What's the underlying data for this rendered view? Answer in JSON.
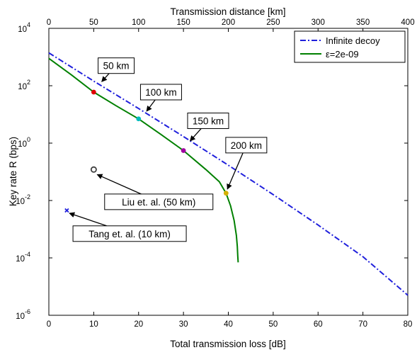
{
  "chart_data": {
    "type": "line",
    "title": "",
    "xlabel": "Total transmission loss [dB]",
    "x2label": "Transmission distance [km]",
    "ylabel": "Key rate R (bps)",
    "xlim": [
      0,
      80
    ],
    "x2lim": [
      0,
      400
    ],
    "ylim_log10": [
      -6,
      4
    ],
    "yscale": "log",
    "grid": false,
    "legend_position": "top-right",
    "x_ticks": [
      "0",
      "10",
      "20",
      "30",
      "40",
      "50",
      "60",
      "70",
      "80"
    ],
    "x2_ticks": [
      "0",
      "50",
      "100",
      "150",
      "200",
      "250",
      "300",
      "350",
      "400"
    ],
    "y_ticks": [
      {
        "base": "10",
        "exp": "-6"
      },
      {
        "base": "10",
        "exp": "-4"
      },
      {
        "base": "10",
        "exp": "-2"
      },
      {
        "base": "10",
        "exp": "0"
      },
      {
        "base": "10",
        "exp": "2"
      },
      {
        "base": "10",
        "exp": "4"
      }
    ],
    "series": [
      {
        "name": "Infinite decoy",
        "style": "dash-dot",
        "color": "#1f1fdc",
        "x": [
          0,
          10,
          20,
          30,
          40,
          50,
          60,
          70,
          80
        ],
        "y": [
          1400,
          145,
          16,
          1.7,
          0.17,
          0.016,
          0.0014,
          0.00011,
          5e-06
        ]
      },
      {
        "name": "ε=2e-09",
        "style": "solid",
        "color": "#008000",
        "x": [
          0,
          5,
          10,
          15,
          20,
          25,
          30,
          35,
          38,
          39.5,
          40.5,
          41.3,
          41.8,
          42,
          42.1,
          42.2
        ],
        "y": [
          900,
          240,
          60,
          20,
          7,
          2,
          0.55,
          0.12,
          0.045,
          0.018,
          0.0065,
          0.002,
          0.0006,
          0.00025,
          0.00012,
          7e-05
        ]
      }
    ],
    "markers": [
      {
        "x": 10,
        "y": 60,
        "color": "#e00000",
        "shape": "dot"
      },
      {
        "x": 20,
        "y": 7,
        "color": "#00bcbc",
        "shape": "dot"
      },
      {
        "x": 30,
        "y": 0.55,
        "color": "#a000a0",
        "shape": "dot"
      },
      {
        "x": 39.5,
        "y": 0.018,
        "color": "#d4b000",
        "shape": "dot"
      },
      {
        "x": 10,
        "y": 0.12,
        "color": "#404040",
        "shape": "ring"
      },
      {
        "x": 4,
        "y": 0.0045,
        "color": "#1f1fdc",
        "shape": "cross"
      }
    ],
    "annotations": [
      {
        "text": "50 km",
        "box_x": 15,
        "box_y": 500,
        "tip_x": 11.8,
        "tip_y": 140
      },
      {
        "text": "100 km",
        "box_x": 25,
        "box_y": 60,
        "tip_x": 21.8,
        "tip_y": 13
      },
      {
        "text": "150 km",
        "box_x": 35.5,
        "box_y": 6,
        "tip_x": 31.5,
        "tip_y": 1.2
      },
      {
        "text": "200 km",
        "box_x": 44,
        "box_y": 0.85,
        "tip_x": 39.8,
        "tip_y": 0.025
      },
      {
        "text": "Liu et. al. (50 km)",
        "box_x": 24.5,
        "box_y": 0.009,
        "tip_x": 10.8,
        "tip_y": 0.08
      },
      {
        "text": "Tang et. al. (10 km)",
        "box_x": 18,
        "box_y": 0.0007,
        "tip_x": 4.6,
        "tip_y": 0.0036
      }
    ]
  }
}
